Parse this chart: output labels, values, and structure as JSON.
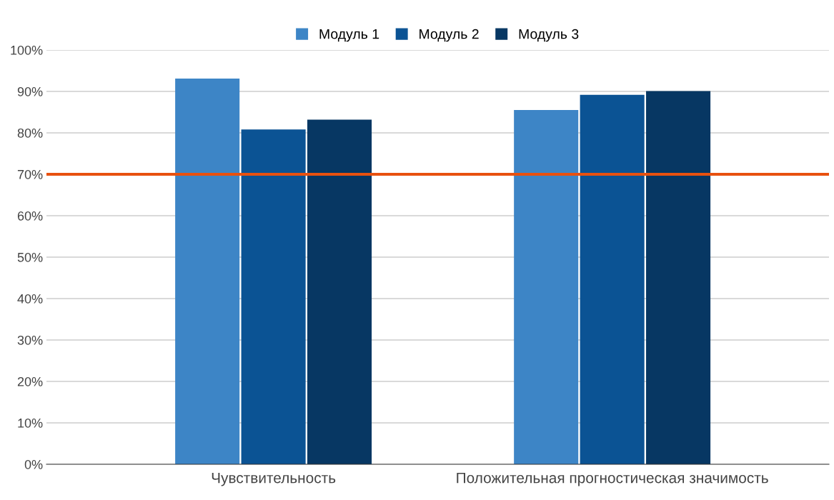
{
  "chart_data": {
    "type": "bar",
    "categories": [
      "Чувствительность",
      "Положительная прогностическая значимость"
    ],
    "series": [
      {
        "name": "Модуль 1",
        "color": "#3d85c6",
        "values": [
          93.1,
          85.5
        ]
      },
      {
        "name": "Модуль 2",
        "color": "#0b5394",
        "values": [
          80.8,
          89.2
        ]
      },
      {
        "name": "Модуль 3",
        "color": "#073763",
        "values": [
          83.2,
          90.1
        ]
      }
    ],
    "ylim": [
      0,
      100
    ],
    "yticks": [
      {
        "value": 0,
        "label": "0%"
      },
      {
        "value": 10,
        "label": "10%"
      },
      {
        "value": 20,
        "label": "20%"
      },
      {
        "value": 30,
        "label": "30%"
      },
      {
        "value": 40,
        "label": "40%"
      },
      {
        "value": 50,
        "label": "50%"
      },
      {
        "value": 60,
        "label": "60%"
      },
      {
        "value": 70,
        "label": "70%"
      },
      {
        "value": 80,
        "label": "80%"
      },
      {
        "value": 90,
        "label": "90%"
      },
      {
        "value": 100,
        "label": "100%"
      }
    ],
    "ref_lines": [
      {
        "axis": "y",
        "value": 70,
        "color": "#e8510f"
      }
    ],
    "grid": "y",
    "legend": "top"
  }
}
